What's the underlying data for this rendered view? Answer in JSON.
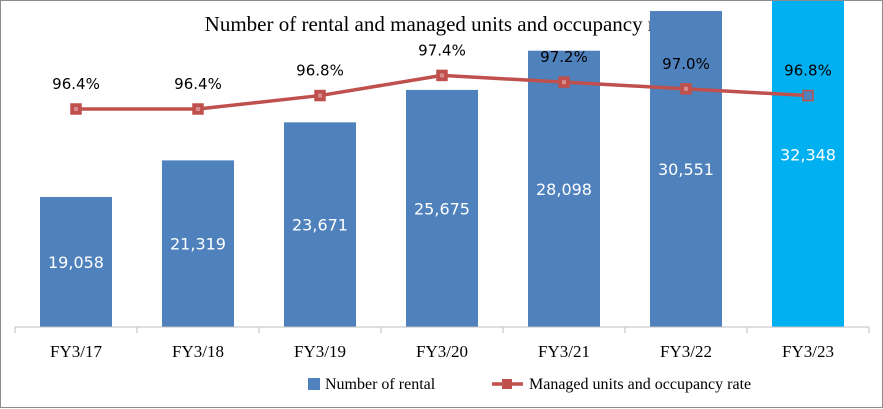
{
  "chart_data": {
    "type": "bar",
    "title": "Number of rental and managed units and occupancy rate",
    "categories": [
      "FY3/17",
      "FY3/18",
      "FY3/19",
      "FY3/20",
      "FY3/21",
      "FY3/22",
      "FY3/23"
    ],
    "series": [
      {
        "name": "Number of rental",
        "type": "bar",
        "values": [
          19058,
          21319,
          23671,
          25675,
          28098,
          30551,
          32348
        ],
        "labels": [
          "19,058",
          "21,319",
          "23,671",
          "25,675",
          "28,098",
          "30,551",
          "32,348"
        ],
        "color": "#4f81bd",
        "highlight_color": "#00b0f0",
        "highlight_index": 6
      },
      {
        "name": "Managed units and occupancy rate",
        "type": "line",
        "values": [
          96.4,
          96.4,
          96.8,
          97.4,
          97.2,
          97.0,
          96.8
        ],
        "labels": [
          "96.4%",
          "96.4%",
          "96.8%",
          "97.4%",
          "97.2%",
          "97.0%",
          "96.8%"
        ],
        "color": "#c0504d",
        "highlight_marker_color": "#4f81bd"
      }
    ],
    "legend_position": "bottom-right",
    "grid": false
  }
}
